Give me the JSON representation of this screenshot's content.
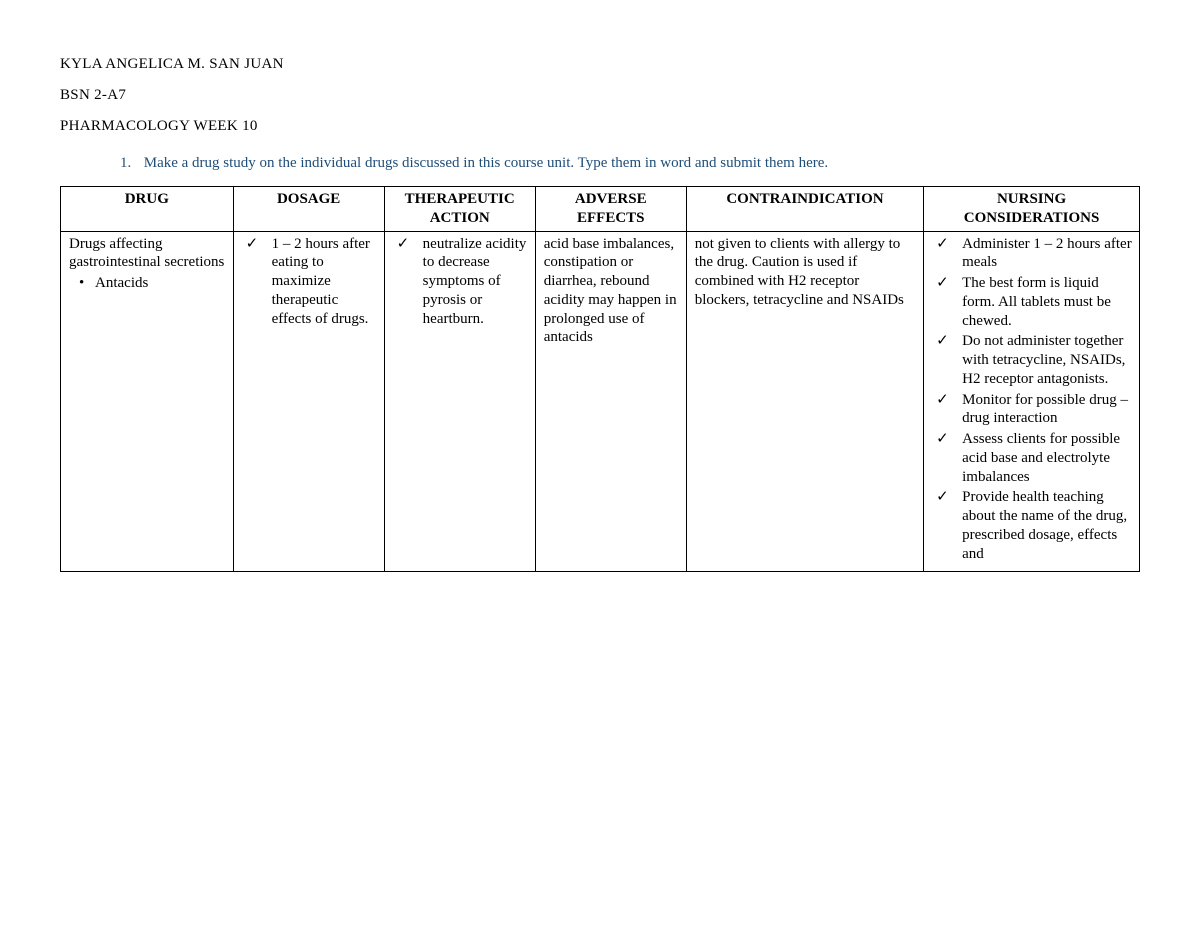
{
  "header": {
    "name": "KYLA ANGELICA M. SAN JUAN",
    "section": "BSN 2-A7",
    "course": "PHARMACOLOGY WEEK 10"
  },
  "instruction": {
    "number": "1.",
    "text": "Make a drug study on the individual drugs discussed in this course unit. Type them in word and submit them here.",
    "color": "#1F4E79"
  },
  "table": {
    "border_color": "#000000",
    "columns": [
      {
        "key": "drug",
        "label": "DRUG"
      },
      {
        "key": "dosage",
        "label": "DOSAGE"
      },
      {
        "key": "action",
        "label": "THERAPEUTIC ACTION"
      },
      {
        "key": "adverse",
        "label": "ADVERSE EFFECTS"
      },
      {
        "key": "contra",
        "label": "CONTRAINDICATION"
      },
      {
        "key": "nursing",
        "label": "NURSING CONSIDERATIONS"
      }
    ],
    "row": {
      "drug": {
        "intro": "Drugs affecting gastrointestinal secretions",
        "bullets": [
          "Antacids"
        ]
      },
      "dosage": {
        "checks": [
          "1 – 2 hours after eating to maximize therapeutic effects of drugs."
        ]
      },
      "action": {
        "checks": [
          "neutralize acidity to decrease symptoms of pyrosis or heartburn."
        ]
      },
      "adverse": {
        "text": "acid base imbalances, constipation or diarrhea, rebound acidity may happen in prolonged use of antacids"
      },
      "contra": {
        "text": "not given to clients with allergy to the drug. Caution is used if combined with H2 receptor blockers, tetracycline and NSAIDs"
      },
      "nursing": {
        "checks": [
          "Administer 1 – 2 hours after meals",
          "The best form is liquid form. All tablets must be chewed.",
          "Do not administer together with tetracycline, NSAIDs, H2 receptor antagonists.",
          "Monitor for possible drug – drug interaction",
          "Assess clients for possible acid base and electrolyte imbalances",
          "Provide health teaching about the name of the drug, prescribed dosage, effects and"
        ]
      }
    }
  },
  "typography": {
    "body_font": "Georgia / serif",
    "body_fontsize_pt": 11,
    "header_fontsize_pt": 11,
    "instruction_color": "#1F4E79",
    "text_color": "#000000",
    "background_color": "#ffffff"
  }
}
